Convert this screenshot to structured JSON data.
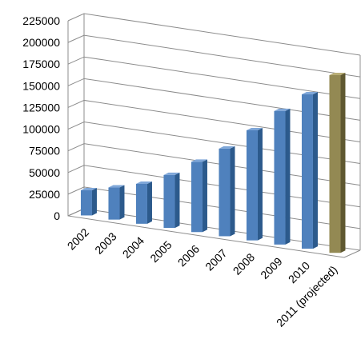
{
  "chart_data": {
    "type": "bar",
    "title": "",
    "xlabel": "",
    "ylabel": "",
    "categories": [
      "2002",
      "2003",
      "2004",
      "2005",
      "2006",
      "2007",
      "2008",
      "2009",
      "2010",
      "2011 (projected)"
    ],
    "values": [
      29000,
      37000,
      46000,
      61000,
      81000,
      101000,
      127000,
      154000,
      178000,
      205000
    ],
    "ylim": [
      0,
      225000
    ],
    "yticks": [
      "0",
      "25000",
      "50000",
      "75000",
      "100000",
      "125000",
      "150000",
      "175000",
      "200000",
      "225000"
    ],
    "grid": true,
    "legend": "none",
    "colors": {
      "actual_front": "#4f81bd",
      "actual_side": "#2c5a8c",
      "actual_top": "#7fa7d9",
      "projected_front": "#938953",
      "projected_side": "#5f5830",
      "projected_top": "#b9ae76"
    }
  }
}
